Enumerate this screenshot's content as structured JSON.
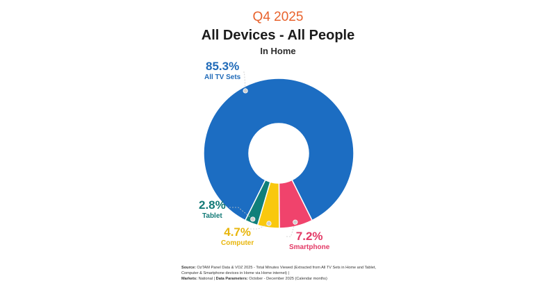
{
  "header": {
    "quarter": "Q4 2025",
    "title": "All Devices - All People",
    "subtitle": "In Home"
  },
  "chart_data": {
    "type": "pie",
    "variant": "donut",
    "categories": [
      "All TV Sets",
      "Smartphone",
      "Computer",
      "Tablet"
    ],
    "values": [
      85.3,
      7.2,
      4.7,
      2.8
    ],
    "value_labels": [
      "85.3%",
      "7.2%",
      "4.7%",
      "2.8%"
    ],
    "colors": [
      "#1c6dc2",
      "#f0436c",
      "#f9c80e",
      "#0f7f7a"
    ],
    "label_colors": [
      "#1f6ab8",
      "#e33a66",
      "#e8b60c",
      "#137a77"
    ],
    "legend": "none"
  },
  "footnote": {
    "source_label": "Source:",
    "source_text": "OzTAM Panel Data & VOZ 2025 - Total Minutes Viewed (Extracted from All TV Sets in Home and Tablet, Computer & Smartphone devices in Home via Home internet) |",
    "markets_label": "Markets:",
    "markets_text": "National |",
    "params_label": "Data Parameters:",
    "params_text": "October - December 2025 (Calendar months)"
  }
}
